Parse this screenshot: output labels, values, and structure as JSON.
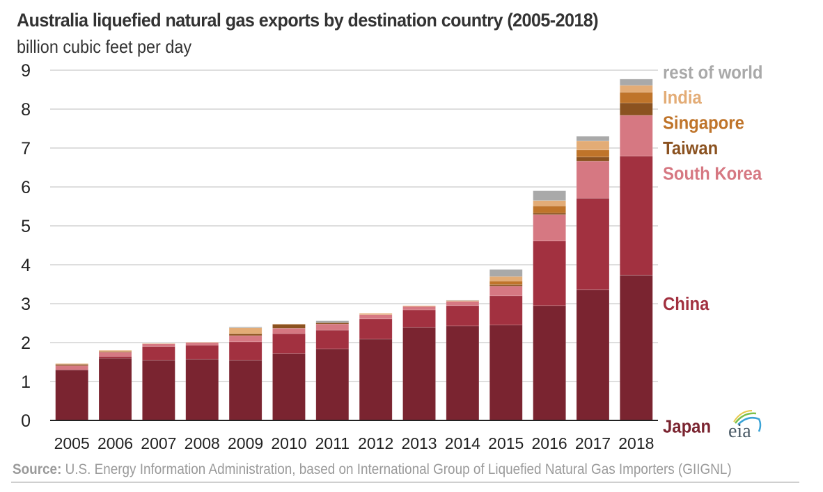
{
  "title": "Australia liquefied natural gas exports by destination country (2005-2018)",
  "subtitle": "billion cubic feet per day",
  "source_label": "Source:",
  "source_text": " U.S. Energy Information Administration, based on International Group of Liquefied Natural Gas Importers (GIIGNL)",
  "logo_text": "eia",
  "chart_data": {
    "type": "bar",
    "stacked": true,
    "title": "Australia liquefied natural gas exports by destination country (2005-2018)",
    "xlabel": "",
    "ylabel": "billion cubic feet per day",
    "ylim": [
      0,
      9
    ],
    "yticks": [
      0,
      1,
      2,
      3,
      4,
      5,
      6,
      7,
      8,
      9
    ],
    "grid": true,
    "legend": "right (inline labels)",
    "categories": [
      "2005",
      "2006",
      "2007",
      "2008",
      "2009",
      "2010",
      "2011",
      "2012",
      "2013",
      "2014",
      "2015",
      "2016",
      "2017",
      "2018"
    ],
    "series": [
      {
        "name": "Japan",
        "color": "#7a2430",
        "values": [
          1.3,
          1.6,
          1.55,
          1.57,
          1.55,
          1.72,
          1.84,
          2.09,
          2.39,
          2.43,
          2.45,
          2.95,
          3.36,
          3.73
        ]
      },
      {
        "name": "China",
        "color": "#a23140",
        "values": [
          0.0,
          0.04,
          0.35,
          0.36,
          0.47,
          0.51,
          0.48,
          0.52,
          0.45,
          0.52,
          0.75,
          1.66,
          2.35,
          3.06
        ]
      },
      {
        "name": "South Korea",
        "color": "#d67882",
        "values": [
          0.11,
          0.11,
          0.07,
          0.07,
          0.16,
          0.14,
          0.16,
          0.11,
          0.09,
          0.11,
          0.25,
          0.68,
          0.95,
          1.05
        ]
      },
      {
        "name": "Taiwan",
        "color": "#8b5220",
        "values": [
          0.03,
          0.02,
          0.0,
          0.0,
          0.04,
          0.1,
          0.03,
          0.0,
          0.0,
          0.0,
          0.04,
          0.04,
          0.11,
          0.32
        ]
      },
      {
        "name": "Singapore",
        "color": "#bf742a",
        "values": [
          0.0,
          0.0,
          0.0,
          0.0,
          0.02,
          0.0,
          0.0,
          0.0,
          0.0,
          0.0,
          0.09,
          0.18,
          0.18,
          0.27
        ]
      },
      {
        "name": "India",
        "color": "#e3ac76",
        "values": [
          0.02,
          0.03,
          0.01,
          0.01,
          0.14,
          0.01,
          0.0,
          0.03,
          0.02,
          0.02,
          0.12,
          0.14,
          0.23,
          0.18
        ]
      },
      {
        "name": "rest of world",
        "color": "#a9a9a9",
        "values": [
          0.0,
          0.0,
          0.0,
          0.0,
          0.02,
          0.0,
          0.05,
          0.0,
          0.0,
          0.01,
          0.18,
          0.25,
          0.12,
          0.16
        ]
      }
    ],
    "legend_labels": [
      {
        "name": "rest of world",
        "color": "#a9a9a9",
        "at": 8.95
      },
      {
        "name": "India",
        "color": "#e3ac76",
        "at": 8.3
      },
      {
        "name": "Singapore",
        "color": "#bf742a",
        "at": 7.65
      },
      {
        "name": "Taiwan",
        "color": "#8b5220",
        "at": 7.0
      },
      {
        "name": "South Korea",
        "color": "#d67882",
        "at": 6.35
      },
      {
        "name": "China",
        "color": "#a23140",
        "at": 3.0
      },
      {
        "name": "Japan",
        "color": "#7a2430",
        "at": -0.15
      }
    ]
  }
}
